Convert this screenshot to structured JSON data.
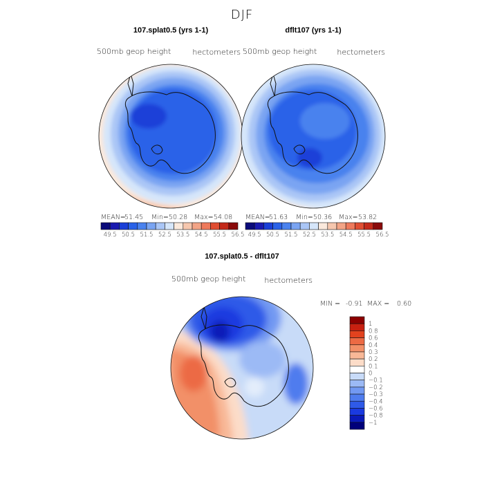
{
  "figure": {
    "title": "DJF",
    "colors": {
      "land_outline": "#111111",
      "abs_scale": [
        "#0b0b7a",
        "#1a1ab0",
        "#1a3fd8",
        "#2a62e8",
        "#4a82ee",
        "#7aa4f2",
        "#aac6f6",
        "#d6e6fa",
        "#fbe9dc",
        "#f6c7ae",
        "#f3a486",
        "#ee7a5c",
        "#e04e32",
        "#c42a1a",
        "#8a0a0a"
      ],
      "diff_scale": [
        "#00007a",
        "#0a1ab8",
        "#1a3ae0",
        "#2f5ae8",
        "#4f7cee",
        "#7299f2",
        "#9cbaf5",
        "#c8dbf8",
        "#ffffff",
        "#fcdcc8",
        "#f8b897",
        "#f29068",
        "#ec6a44",
        "#e2421e",
        "#c82010",
        "#8c0000"
      ]
    }
  },
  "chart_data": [
    {
      "type": "heatmap",
      "projection": "south-polar-stereographic",
      "title": "107.splat0.5 (yrs 1-1)",
      "left_label": "500mb geop height",
      "right_label": "hectometers",
      "stats": {
        "mean_label": "MEAN=",
        "mean": "51.45",
        "min_label": "Min=",
        "min": "50.28",
        "max_label": "Max=",
        "max": "54.08"
      },
      "levels": [
        49.5,
        50,
        50.5,
        51,
        51.5,
        52,
        52.5,
        53,
        53.5,
        54,
        54.5,
        55,
        55.5,
        56,
        56.5
      ],
      "colorbar_labels": [
        "49.5",
        "50.5",
        "51.5",
        "52.5",
        "53.5",
        "54.5",
        "55.5",
        "56.5"
      ]
    },
    {
      "type": "heatmap",
      "projection": "south-polar-stereographic",
      "title": "dflt107 (yrs 1-1)",
      "left_label": "500mb geop height",
      "right_label": "hectometers",
      "stats": {
        "mean_label": "MEAN=",
        "mean": "51.63",
        "min_label": "Min=",
        "min": "50.36",
        "max_label": "Max=",
        "max": "53.82"
      },
      "levels": [
        49.5,
        50,
        50.5,
        51,
        51.5,
        52,
        52.5,
        53,
        53.5,
        54,
        54.5,
        55,
        55.5,
        56,
        56.5
      ],
      "colorbar_labels": [
        "49.5",
        "50.5",
        "51.5",
        "52.5",
        "53.5",
        "54.5",
        "55.5",
        "56.5"
      ]
    },
    {
      "type": "heatmap",
      "projection": "south-polar-stereographic",
      "title": "107.splat0.5 - dflt107",
      "left_label": "500mb geop height",
      "right_label": "hectometers",
      "stats": {
        "min_label": "MIN =",
        "min": "-0.91",
        "max_label": "MAX =",
        "max": "0.60"
      },
      "levels": [
        -1,
        -0.8,
        -0.6,
        -0.4,
        -0.3,
        -0.2,
        -0.1,
        0,
        0.1,
        0.2,
        0.3,
        0.4,
        0.6,
        0.8,
        1
      ],
      "colorbar_labels": [
        "1",
        "0.8",
        "0.6",
        "0.4",
        "0.3",
        "0.2",
        "0.1",
        "0",
        "−0.1",
        "−0.2",
        "−0.3",
        "−0.4",
        "−0.6",
        "−0.8",
        "−1"
      ]
    }
  ]
}
